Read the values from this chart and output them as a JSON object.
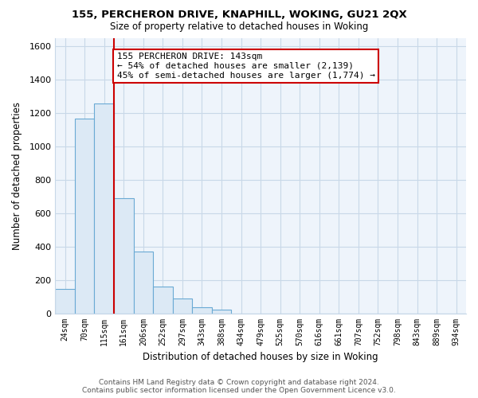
{
  "title": "155, PERCHERON DRIVE, KNAPHILL, WOKING, GU21 2QX",
  "subtitle": "Size of property relative to detached houses in Woking",
  "xlabel": "Distribution of detached houses by size in Woking",
  "ylabel": "Number of detached properties",
  "footnote1": "Contains HM Land Registry data © Crown copyright and database right 2024.",
  "footnote2": "Contains public sector information licensed under the Open Government Licence v3.0.",
  "bar_labels": [
    "24sqm",
    "70sqm",
    "115sqm",
    "161sqm",
    "206sqm",
    "252sqm",
    "297sqm",
    "343sqm",
    "388sqm",
    "434sqm",
    "479sqm",
    "525sqm",
    "570sqm",
    "616sqm",
    "661sqm",
    "707sqm",
    "752sqm",
    "798sqm",
    "843sqm",
    "889sqm",
    "934sqm"
  ],
  "bar_values": [
    148,
    1165,
    1255,
    688,
    370,
    162,
    90,
    35,
    22,
    0,
    0,
    0,
    0,
    0,
    0,
    0,
    0,
    0,
    0,
    0,
    0
  ],
  "bar_color_fill": "#dce9f5",
  "bar_color_edge": "#6aaad4",
  "vline_x": 2.5,
  "vline_color": "#cc0000",
  "ylim": [
    0,
    1650
  ],
  "yticks": [
    0,
    200,
    400,
    600,
    800,
    1000,
    1200,
    1400,
    1600
  ],
  "annotation_text": "155 PERCHERON DRIVE: 143sqm\n← 54% of detached houses are smaller (2,139)\n45% of semi-detached houses are larger (1,774) →",
  "annotation_box_color": "#ffffff",
  "annotation_box_edgecolor": "#cc0000",
  "bg_color": "#ffffff",
  "plot_bg_color": "#eef4fb",
  "grid_color": "#c8d8e8"
}
